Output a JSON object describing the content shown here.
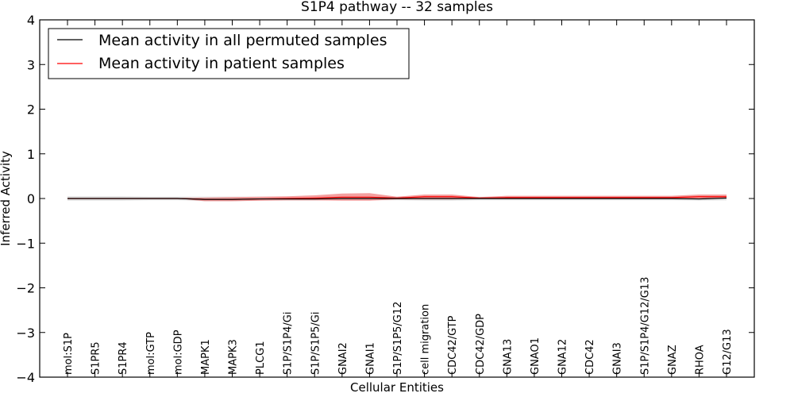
{
  "chart_data": {
    "type": "line",
    "title": "S1P4 pathway -- 32 samples",
    "xlabel": "Cellular Entities",
    "ylabel": "Inferred Activity",
    "ylim": [
      -4,
      4
    ],
    "yticks": [
      4,
      3,
      2,
      1,
      0,
      -1,
      -2,
      -3,
      -4
    ],
    "ytick_labels": [
      "4",
      "3",
      "2",
      "1",
      "0",
      "−1",
      "−2",
      "−3",
      "−4"
    ],
    "grid": false,
    "legend_position": "top-left",
    "categories": [
      "mol:S1P",
      "S1PR5",
      "S1PR4",
      "mol:GTP",
      "mol:GDP",
      "MAPK1",
      "MAPK3",
      "PLCG1",
      "S1P/S1P4/Gi",
      "S1P/S1P5/Gi",
      "GNAI2",
      "GNAI1",
      "S1P/S1P5/G12",
      "cell migration",
      "CDC42/GTP",
      "CDC42/GDP",
      "GNA13",
      "GNAO1",
      "GNA12",
      "CDC42",
      "GNAI3",
      "S1P/S1P4/G12/G13",
      "GNAZ",
      "RHOA",
      "G12/G13"
    ],
    "series": [
      {
        "name": "Mean activity in all permuted samples",
        "color": "#000000",
        "values": [
          0,
          0,
          0,
          0,
          0,
          -0.02,
          -0.02,
          -0.01,
          -0.01,
          -0.01,
          0,
          0,
          0,
          0,
          0,
          0,
          0,
          0,
          0,
          0,
          0,
          0,
          0,
          -0.01,
          0.01
        ],
        "band_low": [
          -0.05,
          -0.05,
          -0.05,
          -0.04,
          -0.04,
          -0.06,
          -0.06,
          -0.05,
          -0.05,
          -0.05,
          -0.04,
          -0.04,
          -0.04,
          -0.05,
          -0.05,
          -0.04,
          -0.04,
          -0.04,
          -0.04,
          -0.04,
          -0.04,
          -0.04,
          -0.04,
          -0.05,
          -0.04
        ],
        "band_high": [
          0.05,
          0.05,
          0.05,
          0.04,
          0.04,
          0.04,
          0.04,
          0.04,
          0.04,
          0.04,
          0.04,
          0.04,
          0.04,
          0.04,
          0.04,
          0.04,
          0.04,
          0.04,
          0.04,
          0.04,
          0.04,
          0.04,
          0.04,
          0.06,
          0.06
        ]
      },
      {
        "name": "Mean activity in patient samples",
        "color": "#ff0000",
        "values": [
          0,
          0,
          0,
          0,
          0,
          -0.02,
          -0.02,
          -0.01,
          0,
          0.01,
          0.03,
          0.03,
          0.01,
          0.04,
          0.04,
          0.01,
          0.02,
          0.02,
          0.02,
          0.02,
          0.02,
          0.02,
          0.02,
          0.04,
          0.04
        ],
        "band_low": [
          0,
          0,
          0,
          0,
          0,
          -0.06,
          -0.06,
          -0.05,
          -0.04,
          -0.04,
          -0.05,
          -0.05,
          -0.02,
          -0.02,
          -0.02,
          -0.01,
          -0.01,
          -0.01,
          -0.01,
          -0.01,
          -0.01,
          -0.01,
          -0.01,
          0.0,
          0.0
        ],
        "band_high": [
          0,
          0,
          0,
          0,
          0.01,
          0.02,
          0.03,
          0.04,
          0.05,
          0.07,
          0.11,
          0.12,
          0.04,
          0.09,
          0.09,
          0.03,
          0.06,
          0.06,
          0.06,
          0.06,
          0.06,
          0.06,
          0.06,
          0.09,
          0.09
        ]
      }
    ],
    "fill_colors": {
      "permuted_band": "#c8c8c8",
      "patient_band": "#f08080"
    }
  }
}
